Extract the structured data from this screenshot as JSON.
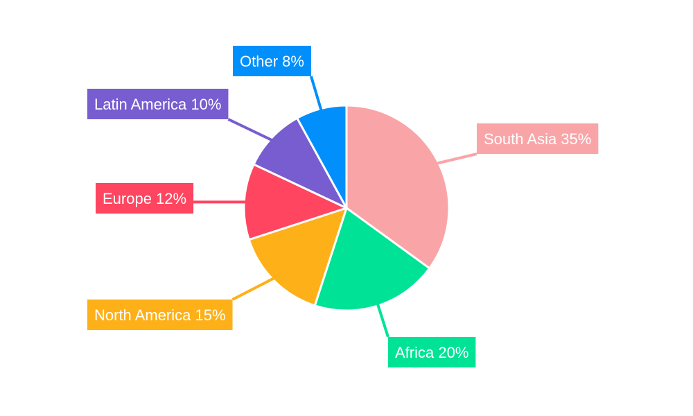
{
  "chart_data": {
    "type": "pie",
    "title": "",
    "start_angle_deg": 0,
    "direction": "clockwise",
    "slices": [
      {
        "label": "South Asia",
        "value": 35,
        "text": "South Asia 35%",
        "color": "#F9A5A8"
      },
      {
        "label": "Africa",
        "value": 20,
        "text": "Africa 20%",
        "color": "#00E396"
      },
      {
        "label": "North America",
        "value": 15,
        "text": "North America 15%",
        "color": "#FEB019"
      },
      {
        "label": "Europe",
        "value": 12,
        "text": "Europe 12%",
        "color": "#FF4560"
      },
      {
        "label": "Latin America",
        "value": 10,
        "text": "Latin America 10%",
        "color": "#775DD0"
      },
      {
        "label": "Other",
        "value": 8,
        "text": "Other 8%",
        "color": "#008FFB"
      }
    ]
  }
}
